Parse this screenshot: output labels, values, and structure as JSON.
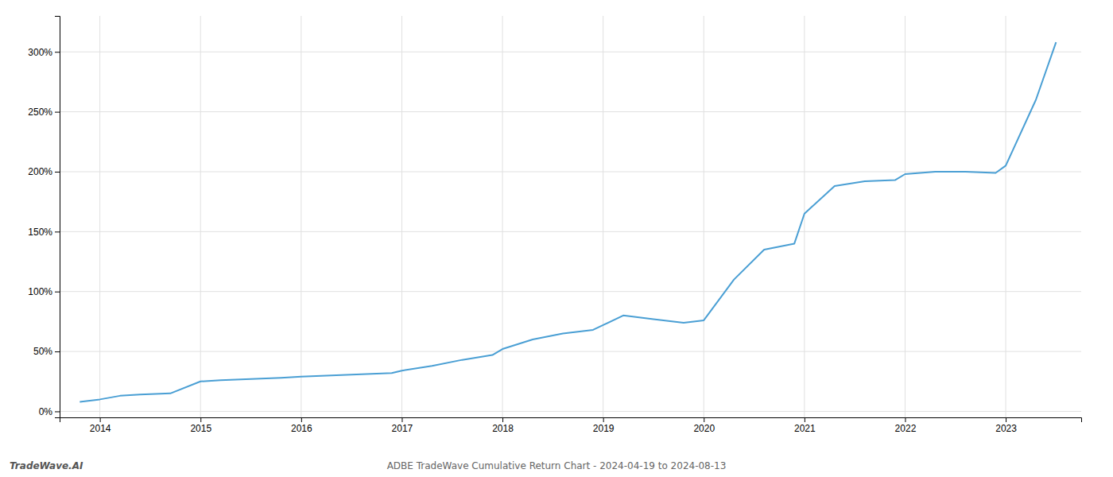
{
  "chart_data": {
    "type": "line",
    "title": "ADBE TradeWave Cumulative Return Chart - 2024-04-19 to 2024-08-13",
    "annotations": [
      "TradeWave.AI"
    ],
    "color": "#4a9fd4",
    "x": [
      2013.8,
      2014.0,
      2014.2,
      2014.4,
      2014.7,
      2015.0,
      2015.2,
      2015.5,
      2015.8,
      2016.0,
      2016.3,
      2016.6,
      2016.9,
      2017.0,
      2017.3,
      2017.6,
      2017.9,
      2018.0,
      2018.3,
      2018.6,
      2018.9,
      2019.0,
      2019.2,
      2019.5,
      2019.8,
      2020.0,
      2020.3,
      2020.6,
      2020.9,
      2021.0,
      2021.3,
      2021.6,
      2021.9,
      2022.0,
      2022.3,
      2022.6,
      2022.9,
      2023.0,
      2023.3,
      2023.5
    ],
    "values": [
      8,
      10,
      13,
      14,
      15,
      25,
      26,
      27,
      28,
      29,
      30,
      31,
      32,
      34,
      38,
      43,
      47,
      52,
      60,
      65,
      68,
      72,
      80,
      77,
      74,
      76,
      110,
      135,
      140,
      165,
      188,
      192,
      193,
      198,
      200,
      200,
      199,
      205,
      260,
      308
    ],
    "xlim": [
      2013.6,
      2023.75
    ],
    "xticks": [
      2014,
      2015,
      2016,
      2017,
      2018,
      2019,
      2020,
      2021,
      2022,
      2023
    ],
    "ylim": [
      -5,
      330
    ],
    "yticks": [
      {
        "value": 0,
        "label": "0%"
      },
      {
        "value": 50,
        "label": "50%"
      },
      {
        "value": 100,
        "label": "100%"
      },
      {
        "value": 150,
        "label": "150%"
      },
      {
        "value": 200,
        "label": "200%"
      },
      {
        "value": 250,
        "label": "250%"
      },
      {
        "value": 300,
        "label": "300%"
      }
    ],
    "grid": true
  }
}
